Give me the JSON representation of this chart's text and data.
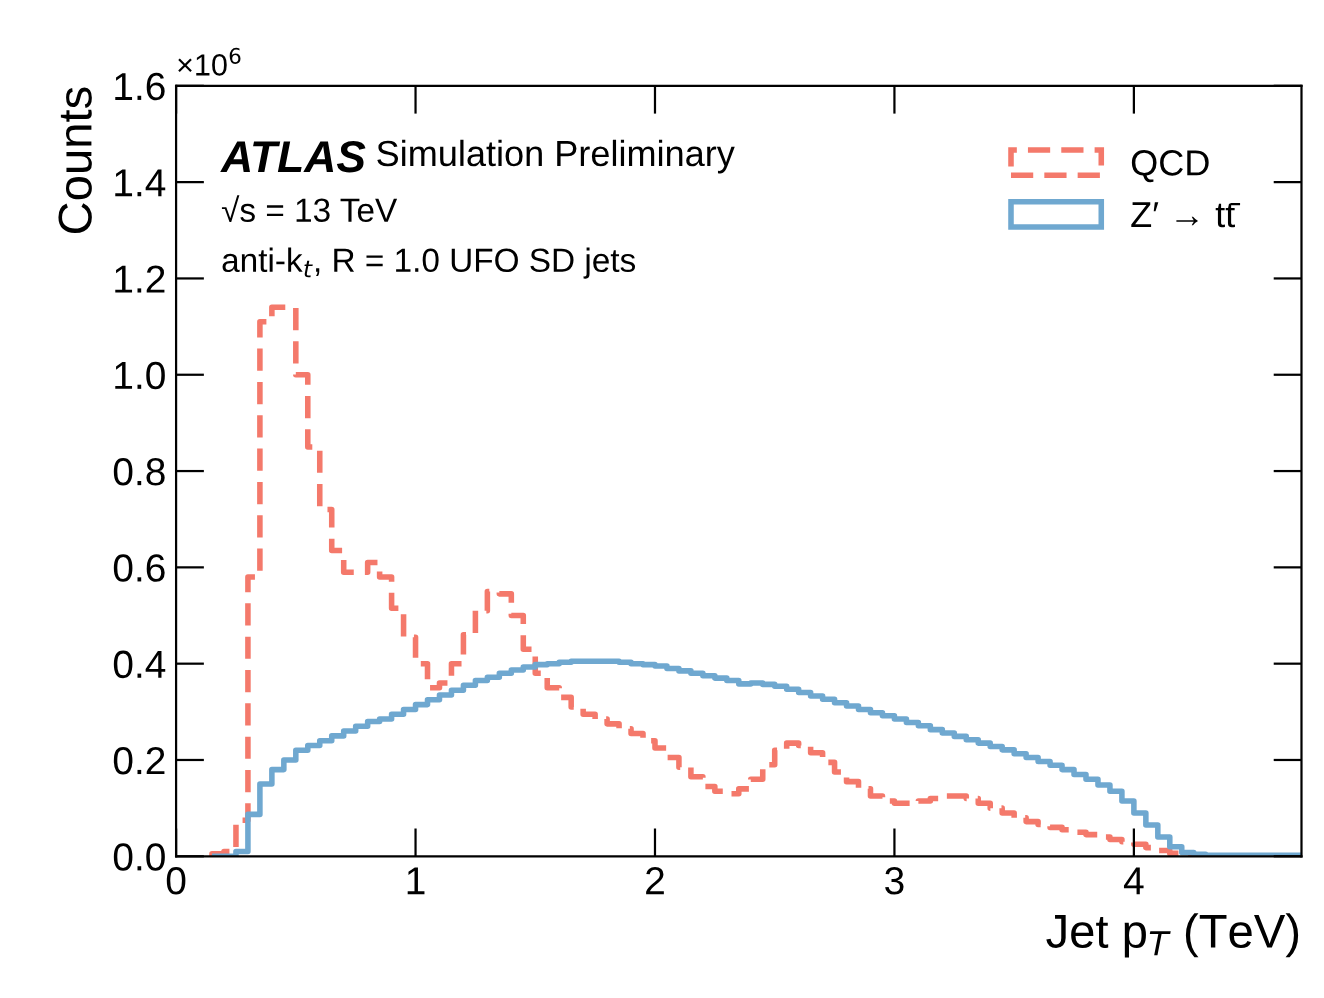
{
  "chart_data": {
    "type": "histogram",
    "xlabel": "Jet p$_{T}$ (TeV)",
    "ylabel": "Counts",
    "annotations": [
      "×10$^{6}$",
      "ATLAS",
      "Simulation Preliminary",
      "√s = 13 TeV",
      "anti-k$_{t}$, R = 1.0 UFO SD jets"
    ],
    "bins": [
      0.15,
      0.2,
      0.25,
      0.3,
      0.35,
      0.4,
      0.45,
      0.5,
      0.55,
      0.6,
      0.65,
      0.7,
      0.75,
      0.8,
      0.85,
      0.9,
      0.95,
      1.0,
      1.05,
      1.1,
      1.15,
      1.2,
      1.25,
      1.3,
      1.35,
      1.4,
      1.45,
      1.5,
      1.55,
      1.6,
      1.65,
      1.7,
      1.75,
      1.8,
      1.85,
      1.9,
      1.95,
      2.0,
      2.05,
      2.1,
      2.15,
      2.2,
      2.25,
      2.3,
      2.35,
      2.4,
      2.45,
      2.5,
      2.55,
      2.6,
      2.65,
      2.7,
      2.75,
      2.8,
      2.85,
      2.9,
      2.95,
      3.0,
      3.05,
      3.1,
      3.15,
      3.2,
      3.25,
      3.3,
      3.35,
      3.4,
      3.45,
      3.5,
      3.55,
      3.6,
      3.65,
      3.7,
      3.75,
      3.8,
      3.85,
      3.9,
      3.95,
      4.0,
      4.05,
      4.1,
      4.15,
      4.2,
      4.25,
      4.3,
      4.35,
      4.4,
      4.45,
      4.5,
      4.55,
      4.6,
      4.65,
      4.7
    ],
    "series": [
      {
        "name": "QCD",
        "color": "#f4796b",
        "line_style": "dashed",
        "values": [
          0.005,
          0.01,
          0.075,
          0.58,
          1.11,
          1.14,
          1.14,
          1.0,
          0.85,
          0.72,
          0.635,
          0.59,
          0.59,
          0.61,
          0.58,
          0.515,
          0.455,
          0.4,
          0.35,
          0.36,
          0.4,
          0.46,
          0.51,
          0.55,
          0.545,
          0.5,
          0.43,
          0.38,
          0.35,
          0.33,
          0.31,
          0.295,
          0.285,
          0.275,
          0.265,
          0.255,
          0.24,
          0.225,
          0.205,
          0.185,
          0.165,
          0.145,
          0.135,
          0.13,
          0.14,
          0.16,
          0.19,
          0.22,
          0.235,
          0.23,
          0.215,
          0.195,
          0.175,
          0.155,
          0.14,
          0.125,
          0.115,
          0.11,
          0.11,
          0.115,
          0.12,
          0.125,
          0.125,
          0.12,
          0.11,
          0.1,
          0.09,
          0.08,
          0.072,
          0.066,
          0.06,
          0.055,
          0.05,
          0.045,
          0.04,
          0.035,
          0.03,
          0.025,
          0.018,
          0.012,
          0.006,
          0.003,
          0.001,
          0.001,
          0.001,
          0.001,
          0.001,
          0.001,
          0.001,
          0.001,
          0.001
        ]
      },
      {
        "name": "Z′ → tt̄",
        "color": "#6fa8d0",
        "line_style": "solid",
        "values": [
          0,
          0,
          0.01,
          0.087,
          0.15,
          0.18,
          0.2,
          0.22,
          0.23,
          0.24,
          0.25,
          0.26,
          0.27,
          0.28,
          0.285,
          0.295,
          0.305,
          0.315,
          0.325,
          0.335,
          0.345,
          0.355,
          0.365,
          0.372,
          0.38,
          0.387,
          0.393,
          0.398,
          0.4,
          0.403,
          0.405,
          0.405,
          0.405,
          0.405,
          0.403,
          0.4,
          0.398,
          0.395,
          0.39,
          0.385,
          0.38,
          0.375,
          0.37,
          0.365,
          0.358,
          0.36,
          0.357,
          0.353,
          0.347,
          0.34,
          0.333,
          0.326,
          0.319,
          0.312,
          0.305,
          0.298,
          0.292,
          0.285,
          0.278,
          0.271,
          0.263,
          0.256,
          0.249,
          0.242,
          0.235,
          0.228,
          0.221,
          0.213,
          0.205,
          0.197,
          0.189,
          0.18,
          0.17,
          0.16,
          0.148,
          0.135,
          0.115,
          0.09,
          0.065,
          0.04,
          0.02,
          0.008,
          0.004,
          0.002,
          0.002,
          0.002,
          0.002,
          0.002,
          0.002,
          0.002,
          0.002
        ]
      }
    ],
    "xlim": [
      0,
      4.7
    ],
    "ylim": [
      0,
      1.6
    ],
    "xticks": [
      0,
      1,
      2,
      3,
      4
    ],
    "yticks": [
      {
        "value": 0,
        "label": "0.0"
      },
      0.2,
      0.4,
      0.6,
      0.8,
      {
        "value": 1,
        "label": "1.0"
      },
      1.2,
      1.4,
      1.6
    ],
    "legend": "top right",
    "grid": false
  }
}
